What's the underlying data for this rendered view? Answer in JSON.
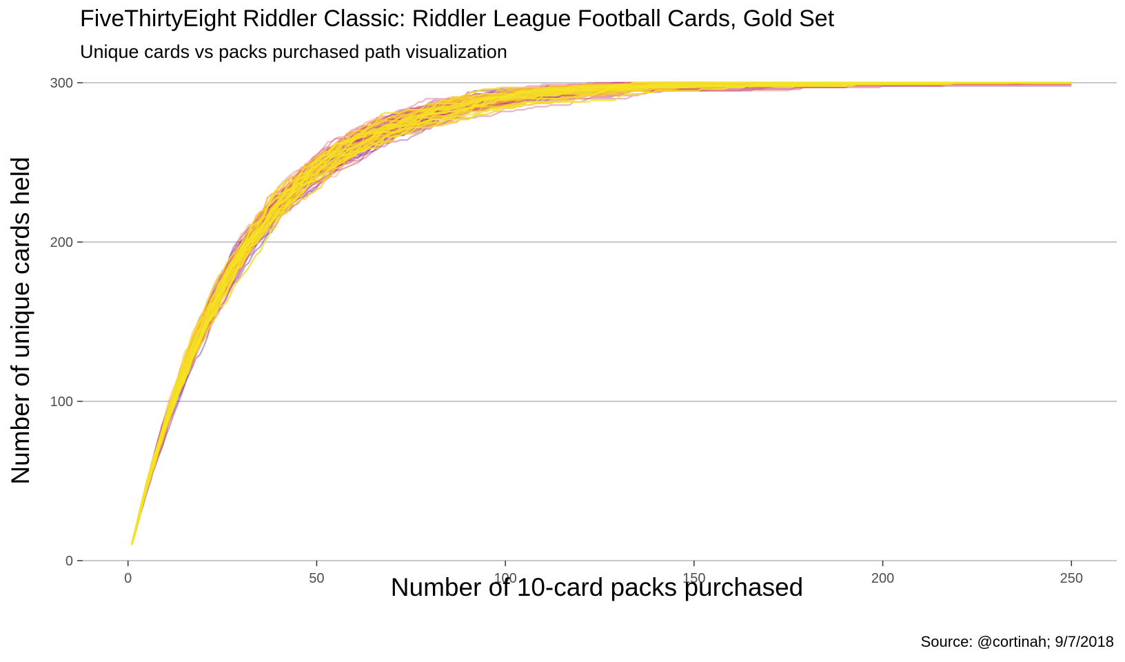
{
  "chart_data": {
    "type": "line",
    "title": "FiveThirtyEight Riddler Classic: Riddler League Football Cards, Gold Set",
    "subtitle": "Unique cards vs packs purchased path visualization",
    "caption": "Source: @cortinah; 9/7/2018",
    "xlabel": "Number of 10-card packs purchased",
    "ylabel": "Number of unique cards held",
    "xlim": [
      -12,
      262
    ],
    "ylim": [
      0,
      300
    ],
    "x_ticks": [
      0,
      50,
      100,
      150,
      200,
      250
    ],
    "y_ticks": [
      0,
      100,
      200,
      300
    ],
    "grid": "horizontal major gridlines only",
    "legend": "none",
    "series_count": 100,
    "total_unique_cards": 300,
    "cards_per_pack": 10,
    "x_start": 1,
    "x_end": 250,
    "series_description": "100 simulated collection paths, each y = unique cards held after x packs; paths start near 10 at x=1 and approach 300 (all reached 300 by 250)",
    "reference_points": [
      {
        "x": 1,
        "y": 10
      },
      {
        "x": 10,
        "y": 84
      },
      {
        "x": 25,
        "y": 172
      },
      {
        "x": 50,
        "y": 243
      },
      {
        "x": 75,
        "y": 277
      },
      {
        "x": 100,
        "y": 291
      },
      {
        "x": 150,
        "y": 298
      },
      {
        "x": 200,
        "y": 299.8
      },
      {
        "x": 250,
        "y": 300
      }
    ],
    "palette": [
      "#3b1d8f",
      "#6a1fa0",
      "#9a2a9c",
      "#c43f8a",
      "#e35f6f",
      "#f4874f",
      "#fbb13c",
      "#f7d52c",
      "#f2e61e"
    ],
    "colors": {
      "gridline": "#c8c8c8",
      "axis_tick": "#333333",
      "tick_label": "#4d4d4d",
      "text": "#000000",
      "background": "#ffffff"
    }
  }
}
